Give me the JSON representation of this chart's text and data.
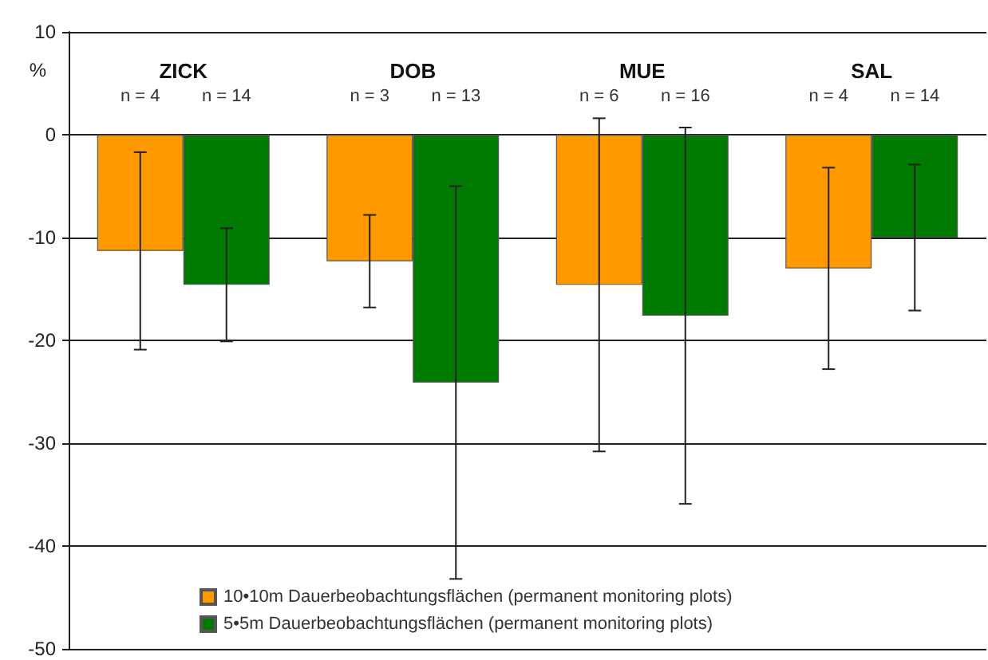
{
  "chart_data": {
    "type": "bar",
    "ylabel": "%",
    "categories": [
      "ZICK",
      "DOB",
      "MUE",
      "SAL"
    ],
    "series": [
      {
        "name": "10•10m Dauerbeobachtungsflächen (permanent monitoring plots)",
        "color": "#ff9900",
        "values": [
          -11.3,
          -12.3,
          -14.6,
          -13.0
        ],
        "errors": [
          9.6,
          4.5,
          16.2,
          9.8
        ]
      },
      {
        "name": "5•5m Dauerbeobachtungsflächen (permanent monitoring plots)",
        "color": "#007a00",
        "values": [
          -14.6,
          -24.1,
          -17.6,
          -10.0
        ],
        "errors": [
          5.5,
          19.1,
          18.3,
          7.1
        ]
      }
    ],
    "annotations": [
      "n = 4",
      "n = 14",
      "n = 3",
      "n = 13",
      "n = 6",
      "n = 16",
      "n = 4",
      "n = 14"
    ],
    "ylim": [
      -50,
      10
    ],
    "yticks": [
      -50,
      -40,
      -30,
      -20,
      -10,
      0,
      10
    ],
    "grid": "y",
    "legend": "bottom left"
  }
}
